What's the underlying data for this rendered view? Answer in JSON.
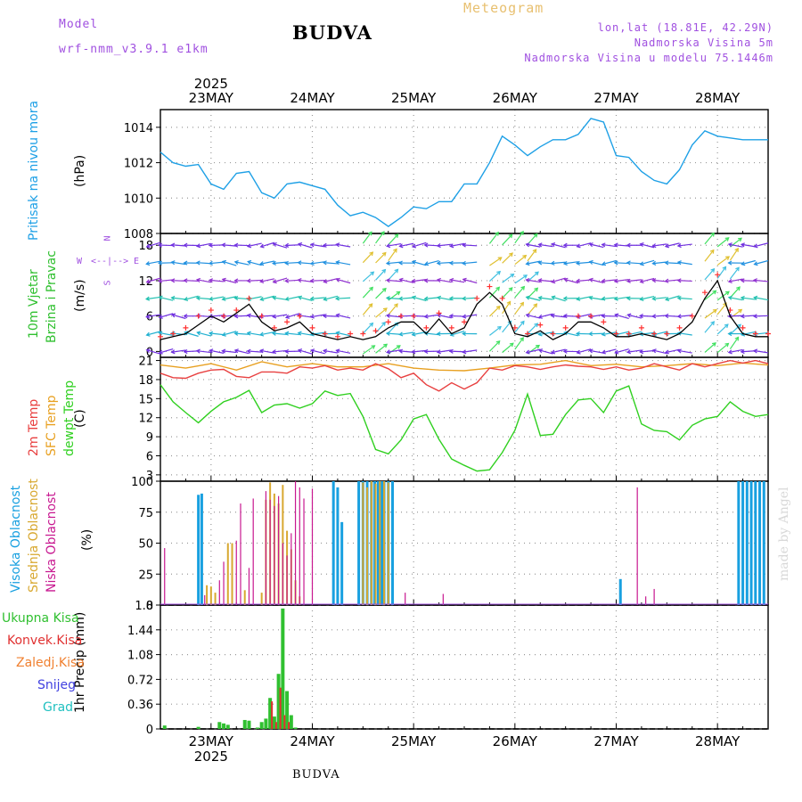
{
  "header": {
    "model_label": "Model",
    "model_name": "wrf-nmm_v3.9.1 e1km",
    "title": "BUDVA",
    "meteogram_label": "Meteogram",
    "lonlat": "lon,lat (18.81E, 42.29N)",
    "elevation": "Nadmorska Visina 5m",
    "model_elevation": "Nadmorska Visina u modelu 75.1446m",
    "footer": "BUDVA",
    "watermark": "made by Angel"
  },
  "colors": {
    "pressure": "#1ea0e6",
    "temp2m": "#e84040",
    "sfc": "#e8a020",
    "dewpt": "#30d020",
    "high": "#18a0e0",
    "mid": "#d8a830",
    "low": "#c81890",
    "total": "#30c030",
    "conv": "#e03030",
    "frozen": "#f08030",
    "snow": "#4040e0",
    "grad": "#20c0c0",
    "violet": "#a050e0"
  },
  "time_axis": {
    "top_year": "2025",
    "bottom_year": "2025",
    "days": [
      "23MAY",
      "24MAY",
      "25MAY",
      "26MAY",
      "27MAY",
      "28MAY"
    ]
  },
  "panels": {
    "pressure": {
      "label_1": "Pritisak na nivou mora",
      "units": "(hPa)",
      "ticks": [
        "1008",
        "1010",
        "1012",
        "1014"
      ]
    },
    "wind": {
      "label_1": "10m Vjetar",
      "label_2": "Brzina i Pravac",
      "units": "(m/s)",
      "ticks": [
        "0",
        "6",
        "12",
        "18"
      ],
      "compass": {
        "n": "N",
        "s": "S",
        "e": "E",
        "w": "W"
      }
    },
    "temp": {
      "label_1": "2m Temp",
      "label_2": "SFC Temp",
      "label_3": "dewpt Temp",
      "units": "(C)",
      "ticks": [
        "3",
        "6",
        "9",
        "12",
        "15",
        "18",
        "21"
      ]
    },
    "cloud": {
      "label_1": "Visoka Oblacnost",
      "label_2": "Srednja Oblacnost",
      "label_3": "Niska Oblacnost",
      "units": "(%)",
      "ticks": [
        "0",
        "25",
        "50",
        "75",
        "100"
      ]
    },
    "precip": {
      "label": "1hr Precip (mm)",
      "ticks": [
        "0",
        "0.36",
        "0.72",
        "1.08",
        "1.44",
        "1.8"
      ],
      "legend": [
        "Ukupna Kisa",
        "Konvek.Kisa",
        "Zaledj.Kisa",
        "Snijeg",
        "Grad"
      ]
    }
  },
  "chart_data": [
    {
      "type": "line",
      "title": "Pritisak na nivou mora",
      "ylabel": "(hPa)",
      "ylim": [
        1008,
        1015
      ],
      "x_units": "hours from 2025-05-22 12:00",
      "series": [
        {
          "name": "Pritisak na nivou mora",
          "x": [
            0,
            3,
            6,
            9,
            12,
            15,
            18,
            21,
            24,
            27,
            30,
            33,
            36,
            39,
            42,
            45,
            48,
            51,
            54,
            57,
            60,
            63,
            66,
            69,
            72,
            75,
            78,
            81,
            84,
            87,
            90,
            93,
            96,
            99,
            102,
            105,
            108,
            111,
            114,
            117,
            120,
            123,
            126,
            129,
            132,
            135,
            138,
            141,
            144
          ],
          "values": [
            1012.6,
            1012.0,
            1011.8,
            1011.9,
            1010.8,
            1010.5,
            1011.4,
            1011.5,
            1010.3,
            1010.0,
            1010.8,
            1010.9,
            1010.7,
            1010.5,
            1009.6,
            1009.0,
            1009.2,
            1008.9,
            1008.4,
            1008.9,
            1009.5,
            1009.4,
            1009.8,
            1009.8,
            1010.8,
            1010.8,
            1012.0,
            1013.5,
            1013.0,
            1012.4,
            1012.9,
            1013.3,
            1013.3,
            1013.6,
            1014.5,
            1014.3,
            1012.4,
            1012.3,
            1011.5,
            1011.0,
            1010.8,
            1011.6,
            1013.0,
            1013.8,
            1013.5,
            1013.4,
            1013.3,
            1013.3,
            1013.3
          ]
        }
      ],
      "grid": true
    },
    {
      "type": "line",
      "title": "10m Vjetar Brzina i Pravac",
      "ylabel": "(m/s)",
      "ylim": [
        -1,
        20
      ],
      "x_units": "hours from 2025-05-22 12:00",
      "series": [
        {
          "name": "speed",
          "x": [
            0,
            3,
            6,
            9,
            12,
            15,
            18,
            21,
            24,
            27,
            30,
            33,
            36,
            39,
            42,
            45,
            48,
            51,
            54,
            57,
            60,
            63,
            66,
            69,
            72,
            75,
            78,
            81,
            84,
            87,
            90,
            93,
            96,
            99,
            102,
            105,
            108,
            111,
            114,
            117,
            120,
            123,
            126,
            129,
            132,
            135,
            138,
            141,
            144
          ],
          "values": [
            2,
            2.5,
            3,
            4.5,
            6,
            5,
            6.5,
            8,
            5,
            3.5,
            4,
            5,
            3,
            2.5,
            2,
            2.5,
            2,
            2.5,
            4,
            5,
            5,
            3,
            5.5,
            3,
            4,
            8,
            10,
            8,
            3,
            2.5,
            3.5,
            2,
            3,
            5,
            5,
            4,
            2.5,
            2.5,
            3,
            2.5,
            2,
            3,
            5,
            9,
            12,
            6,
            3,
            2.5,
            2.5
          ]
        },
        {
          "name": "gust",
          "x": [
            0,
            3,
            6,
            9,
            12,
            15,
            18,
            21,
            24,
            27,
            30,
            33,
            36,
            39,
            42,
            45,
            48,
            51,
            54,
            57,
            60,
            63,
            66,
            69,
            72,
            75,
            78,
            81,
            84,
            87,
            90,
            93,
            96,
            99,
            102,
            105,
            108,
            111,
            114,
            117,
            120,
            123,
            126,
            129,
            132,
            135,
            138,
            141,
            144
          ],
          "values": [
            2.5,
            3,
            4,
            6,
            7,
            6,
            7,
            9,
            6,
            4,
            5,
            6,
            4,
            3,
            2.5,
            3,
            3,
            3.5,
            5,
            6,
            6,
            4,
            6.5,
            4,
            5,
            9,
            11,
            9,
            4,
            3,
            4.5,
            3,
            4,
            6,
            6,
            5,
            3,
            3,
            4,
            3,
            3,
            4,
            6,
            10,
            13,
            7,
            4,
            3,
            3
          ]
        }
      ],
      "grid": true
    },
    {
      "type": "line",
      "title": "Temperatura",
      "ylabel": "(C)",
      "ylim": [
        2,
        21.5
      ],
      "x_units": "hours from 2025-05-22 12:00",
      "series": [
        {
          "name": "2m Temp",
          "x": [
            0,
            3,
            6,
            9,
            12,
            15,
            18,
            21,
            24,
            27,
            30,
            33,
            36,
            39,
            42,
            45,
            48,
            51,
            54,
            57,
            60,
            63,
            66,
            69,
            72,
            75,
            78,
            81,
            84,
            87,
            90,
            93,
            96,
            99,
            102,
            105,
            108,
            111,
            114,
            117,
            120,
            123,
            126,
            129,
            132,
            135,
            138,
            141,
            144
          ],
          "values": [
            19,
            18.3,
            18.2,
            19,
            19.5,
            19.6,
            18.5,
            18.3,
            19.2,
            19.2,
            19,
            20,
            19.8,
            20.2,
            19.5,
            19.8,
            19.5,
            20.5,
            19.7,
            18.3,
            19,
            17.2,
            16.2,
            17.5,
            16.5,
            17.5,
            19.8,
            19.5,
            20.2,
            20,
            19.6,
            20,
            20.3,
            20.1,
            20,
            19.6,
            20,
            19.5,
            19.8,
            20.5,
            20,
            19.5,
            20.5,
            20,
            20.5,
            21,
            20.6,
            21,
            20.5
          ]
        },
        {
          "name": "SFC Temp",
          "x": [
            0,
            6,
            12,
            18,
            24,
            30,
            36,
            42,
            48,
            54,
            60,
            66,
            72,
            78,
            84,
            90,
            96,
            102,
            108,
            114,
            120,
            126,
            132,
            138,
            144
          ],
          "values": [
            20.3,
            19.8,
            20.5,
            19.5,
            20.8,
            20,
            20.5,
            20,
            20,
            20.5,
            19.8,
            19.5,
            19.4,
            19.8,
            20.3,
            20.4,
            21,
            20.2,
            20.4,
            20,
            20.2,
            20.5,
            20.2,
            20.6,
            20.3
          ]
        },
        {
          "name": "dewpt Temp",
          "x": [
            0,
            3,
            6,
            9,
            12,
            15,
            18,
            21,
            24,
            27,
            30,
            33,
            36,
            39,
            42,
            45,
            48,
            51,
            54,
            57,
            60,
            63,
            66,
            69,
            72,
            75,
            78,
            81,
            84,
            87,
            90,
            93,
            96,
            99,
            102,
            105,
            108,
            111,
            114,
            117,
            120,
            123,
            126,
            129,
            132,
            135,
            138,
            141,
            144
          ],
          "values": [
            17.2,
            14.5,
            12.8,
            11.2,
            13,
            14.5,
            15.2,
            16.3,
            12.8,
            14,
            14.2,
            13.5,
            14.2,
            16.2,
            15.5,
            15.8,
            12.2,
            7,
            6.3,
            8.5,
            11.8,
            12.5,
            8.6,
            5.5,
            4.5,
            3.6,
            3.8,
            6.5,
            10,
            15.7,
            9.2,
            9.4,
            12.5,
            14.8,
            15,
            12.8,
            16.2,
            17,
            11,
            10,
            9.8,
            8.5,
            10.8,
            11.8,
            12.2,
            14.5,
            13,
            12.2,
            12.5
          ]
        }
      ],
      "grid": true
    },
    {
      "type": "bar",
      "title": "Oblacnost",
      "ylabel": "(%)",
      "ylim": [
        0,
        100
      ],
      "x_units": "hours from 2025-05-22 12:00",
      "series": [
        {
          "name": "Visoka Oblacnost",
          "x": [
            9,
            9.8,
            41,
            42,
            43,
            47,
            48,
            49,
            50,
            50.8,
            51.6,
            52.4,
            53,
            54,
            55,
            109,
            137,
            138,
            139,
            140,
            141,
            142,
            143
          ],
          "values": [
            89,
            90,
            100,
            95,
            67,
            100,
            100,
            100,
            100,
            100,
            100,
            100,
            100,
            100,
            100,
            21,
            100,
            100,
            100,
            100,
            100,
            100,
            100
          ]
        },
        {
          "name": "Srednja Oblacnost",
          "x": [
            11,
            12,
            13,
            16,
            17,
            20,
            24,
            25,
            26,
            27,
            28,
            29,
            30,
            31,
            32,
            33,
            48,
            49,
            50,
            51,
            52,
            53,
            54
          ],
          "values": [
            16,
            15,
            10,
            50,
            50,
            12,
            10,
            85,
            99,
            90,
            82,
            97,
            60,
            45,
            20,
            7,
            99,
            95,
            100,
            98,
            100,
            100,
            99
          ]
        },
        {
          "name": "Niska Oblacnost",
          "x": [
            1,
            10.5,
            14,
            15,
            18,
            19,
            21,
            22,
            25,
            26,
            27,
            28,
            29,
            30,
            31,
            32,
            33,
            34,
            36,
            58,
            67,
            113,
            115,
            117
          ],
          "values": [
            46,
            8,
            20,
            35,
            52,
            82,
            30,
            86,
            92,
            85,
            80,
            88,
            50,
            40,
            58,
            100,
            95,
            86,
            94,
            10,
            9,
            95,
            7,
            13
          ]
        }
      ],
      "grid": true
    },
    {
      "type": "bar",
      "title": "1hr Precip",
      "ylabel": "1hr Precip (mm)",
      "ylim": [
        0,
        1.8
      ],
      "x_units": "hours from 2025-05-22 12:00",
      "series": [
        {
          "name": "Ukupna Kisa",
          "x": [
            1,
            9,
            14,
            15,
            16,
            20,
            21,
            23,
            24,
            25,
            26,
            27,
            28,
            29,
            30,
            31,
            32
          ],
          "values": [
            0.05,
            0.03,
            0.1,
            0.08,
            0.06,
            0.13,
            0.12,
            0.02,
            0.1,
            0.15,
            0.45,
            0.18,
            0.8,
            1.75,
            0.55,
            0.2,
            0.02
          ]
        },
        {
          "name": "Konvek.Kisa",
          "x": [
            26,
            27,
            28,
            29,
            30
          ],
          "values": [
            0.4,
            0.1,
            0.6,
            0.2,
            0.1
          ]
        }
      ],
      "grid": true
    }
  ]
}
